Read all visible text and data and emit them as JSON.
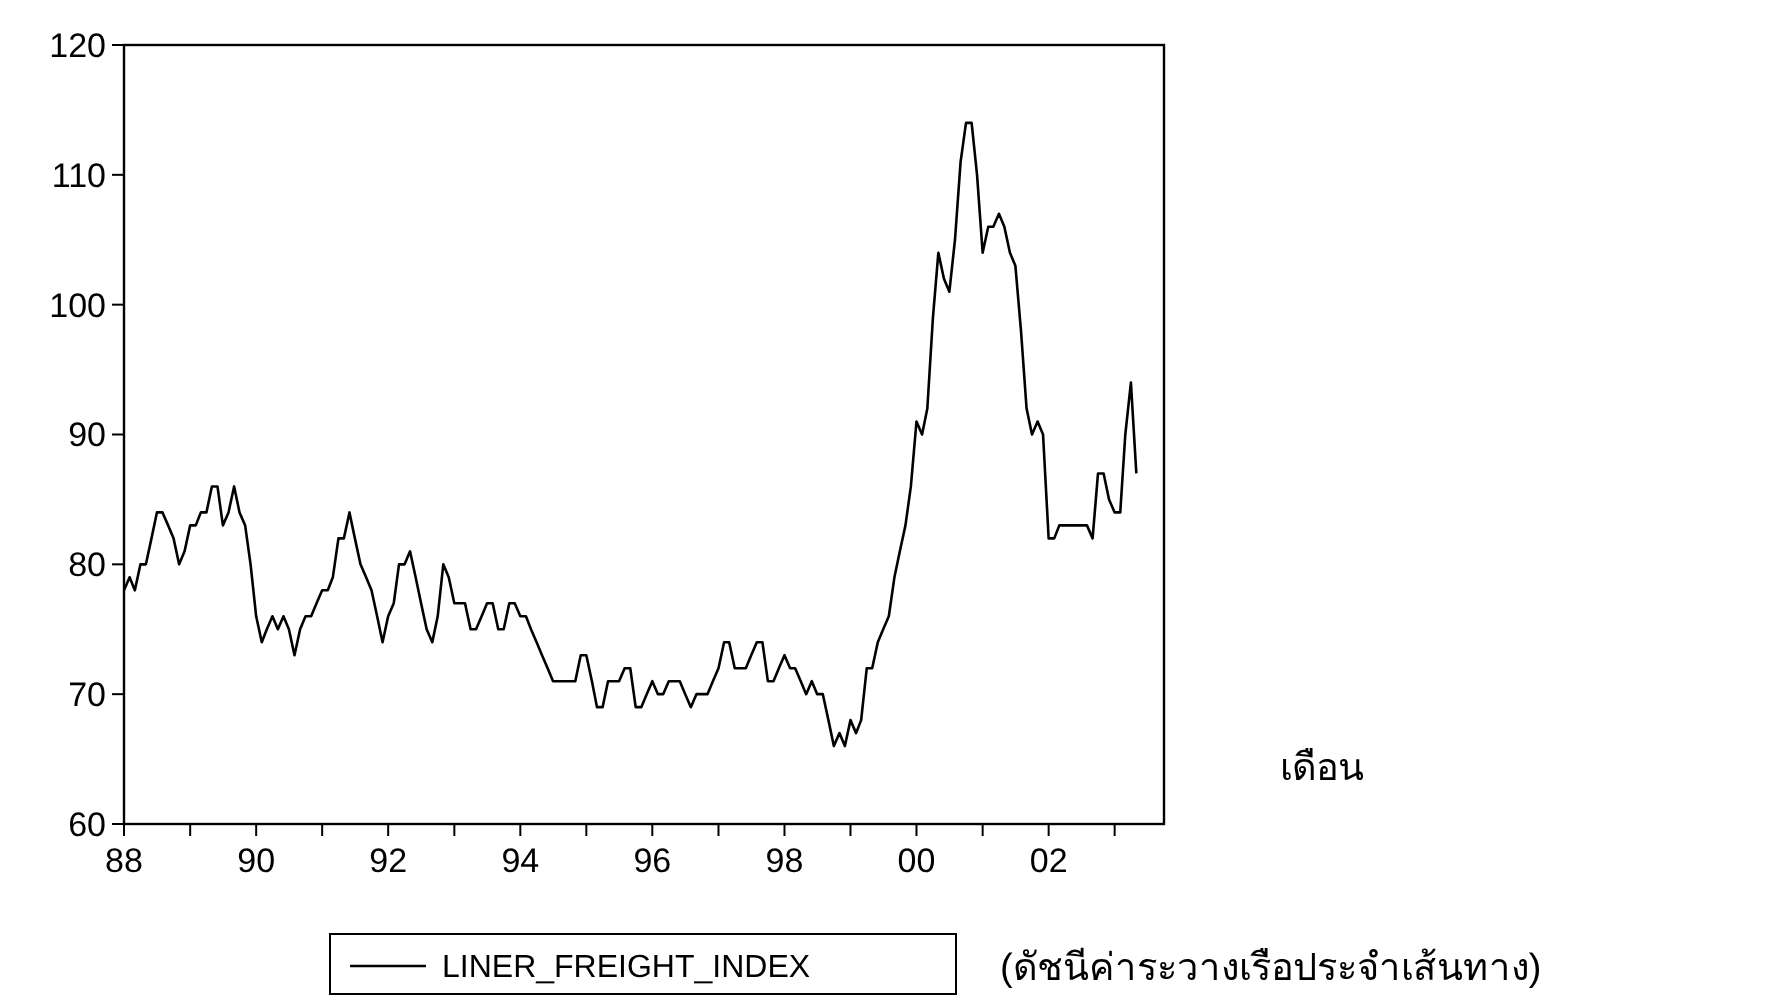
{
  "chart_data": {
    "type": "line",
    "xlabel": "เดือน",
    "annotations": [
      "(ดัชนีค่าระวางเรือประจำเส้นทาง)"
    ],
    "x": [
      "1988-01",
      "1988-02",
      "1988-03",
      "1988-04",
      "1988-05",
      "1988-06",
      "1988-07",
      "1988-08",
      "1988-09",
      "1988-10",
      "1988-11",
      "1988-12",
      "1989-01",
      "1989-02",
      "1989-03",
      "1989-04",
      "1989-05",
      "1989-06",
      "1989-07",
      "1989-08",
      "1989-09",
      "1989-10",
      "1989-11",
      "1989-12",
      "1990-01",
      "1990-02",
      "1990-03",
      "1990-04",
      "1990-05",
      "1990-06",
      "1990-07",
      "1990-08",
      "1990-09",
      "1990-10",
      "1990-11",
      "1990-12",
      "1991-01",
      "1991-02",
      "1991-03",
      "1991-04",
      "1991-05",
      "1991-06",
      "1991-07",
      "1991-08",
      "1991-09",
      "1991-10",
      "1991-11",
      "1991-12",
      "1992-01",
      "1992-02",
      "1992-03",
      "1992-04",
      "1992-05",
      "1992-06",
      "1992-07",
      "1992-08",
      "1992-09",
      "1992-10",
      "1992-11",
      "1992-12",
      "1993-01",
      "1993-02",
      "1993-03",
      "1993-04",
      "1993-05",
      "1993-06",
      "1993-07",
      "1993-08",
      "1993-09",
      "1993-10",
      "1993-11",
      "1993-12",
      "1994-01",
      "1994-02",
      "1994-03",
      "1994-04",
      "1994-05",
      "1994-06",
      "1994-07",
      "1994-08",
      "1994-09",
      "1994-10",
      "1994-11",
      "1994-12",
      "1995-01",
      "1995-02",
      "1995-03",
      "1995-04",
      "1995-05",
      "1995-06",
      "1995-07",
      "1995-08",
      "1995-09",
      "1995-10",
      "1995-11",
      "1995-12",
      "1996-01",
      "1996-02",
      "1996-03",
      "1996-04",
      "1996-05",
      "1996-06",
      "1996-07",
      "1996-08",
      "1996-09",
      "1996-10",
      "1996-11",
      "1996-12",
      "1997-01",
      "1997-02",
      "1997-03",
      "1997-04",
      "1997-05",
      "1997-06",
      "1997-07",
      "1997-08",
      "1997-09",
      "1997-10",
      "1997-11",
      "1997-12",
      "1998-01",
      "1998-02",
      "1998-03",
      "1998-04",
      "1998-05",
      "1998-06",
      "1998-07",
      "1998-08",
      "1998-09",
      "1998-10",
      "1998-11",
      "1998-12",
      "1999-01",
      "1999-02",
      "1999-03",
      "1999-04",
      "1999-05",
      "1999-06",
      "1999-07",
      "1999-08",
      "1999-09",
      "1999-10",
      "1999-11",
      "1999-12",
      "2000-01",
      "2000-02",
      "2000-03",
      "2000-04",
      "2000-05",
      "2000-06",
      "2000-07",
      "2000-08",
      "2000-09",
      "2000-10",
      "2000-11",
      "2000-12",
      "2001-01",
      "2001-02",
      "2001-03",
      "2001-04",
      "2001-05",
      "2001-06",
      "2001-07",
      "2001-08",
      "2001-09",
      "2001-10",
      "2001-11",
      "2001-12",
      "2002-01",
      "2002-02",
      "2002-03",
      "2002-04",
      "2002-05",
      "2002-06",
      "2002-07",
      "2002-08",
      "2002-09",
      "2002-10",
      "2002-11",
      "2002-12",
      "2003-01",
      "2003-02",
      "2003-03",
      "2003-04",
      "2003-05"
    ],
    "series": [
      {
        "name": "LINER_FREIGHT_INDEX",
        "color": "#000000",
        "values": [
          78,
          79,
          78,
          80,
          80,
          82,
          84,
          84,
          83,
          82,
          80,
          81,
          83,
          83,
          84,
          84,
          86,
          86,
          83,
          84,
          86,
          84,
          83,
          80,
          76,
          74,
          75,
          76,
          75,
          76,
          75,
          73,
          75,
          76,
          76,
          77,
          78,
          78,
          79,
          82,
          82,
          84,
          82,
          80,
          79,
          78,
          76,
          74,
          76,
          77,
          80,
          80,
          81,
          79,
          77,
          75,
          74,
          76,
          80,
          79,
          77,
          77,
          77,
          75,
          75,
          76,
          77,
          77,
          75,
          75,
          77,
          77,
          76,
          76,
          75,
          74,
          73,
          72,
          71,
          71,
          71,
          71,
          71,
          73,
          73,
          71,
          69,
          69,
          71,
          71,
          71,
          72,
          72,
          69,
          69,
          70,
          71,
          70,
          70,
          71,
          71,
          71,
          70,
          69,
          70,
          70,
          70,
          71,
          72,
          74,
          74,
          72,
          72,
          72,
          73,
          74,
          74,
          71,
          71,
          72,
          73,
          72,
          72,
          71,
          70,
          71,
          70,
          70,
          68,
          66,
          67,
          66,
          68,
          67,
          68,
          72,
          72,
          74,
          75,
          76,
          79,
          81,
          83,
          86,
          91,
          90,
          92,
          99,
          104,
          102,
          101,
          105,
          111,
          114,
          114,
          110,
          104,
          106,
          106,
          107,
          106,
          104,
          103,
          98,
          92,
          90,
          91,
          90,
          82,
          82,
          83,
          83,
          83,
          83,
          83,
          83,
          82,
          87,
          87,
          85,
          84,
          84,
          90,
          94,
          87
        ]
      }
    ],
    "xlim": [
      "1988-01",
      "2003-10"
    ],
    "xticks": [
      {
        "value": "1988-01",
        "label": "88"
      },
      {
        "value": "1989-01",
        "label": null
      },
      {
        "value": "1990-01",
        "label": "90"
      },
      {
        "value": "1991-01",
        "label": null
      },
      {
        "value": "1992-01",
        "label": "92"
      },
      {
        "value": "1993-01",
        "label": null
      },
      {
        "value": "1994-01",
        "label": "94"
      },
      {
        "value": "1995-01",
        "label": null
      },
      {
        "value": "1996-01",
        "label": "96"
      },
      {
        "value": "1997-01",
        "label": null
      },
      {
        "value": "1998-01",
        "label": "98"
      },
      {
        "value": "1999-01",
        "label": null
      },
      {
        "value": "2000-01",
        "label": "00"
      },
      {
        "value": "2001-01",
        "label": null
      },
      {
        "value": "2002-01",
        "label": "02"
      },
      {
        "value": "2003-01",
        "label": null
      }
    ],
    "ylim": [
      60,
      120
    ],
    "yticks": [
      60,
      70,
      80,
      90,
      100,
      110,
      120
    ],
    "grid": false,
    "legend": "bottom",
    "line_style": "solid",
    "marker": "none"
  }
}
